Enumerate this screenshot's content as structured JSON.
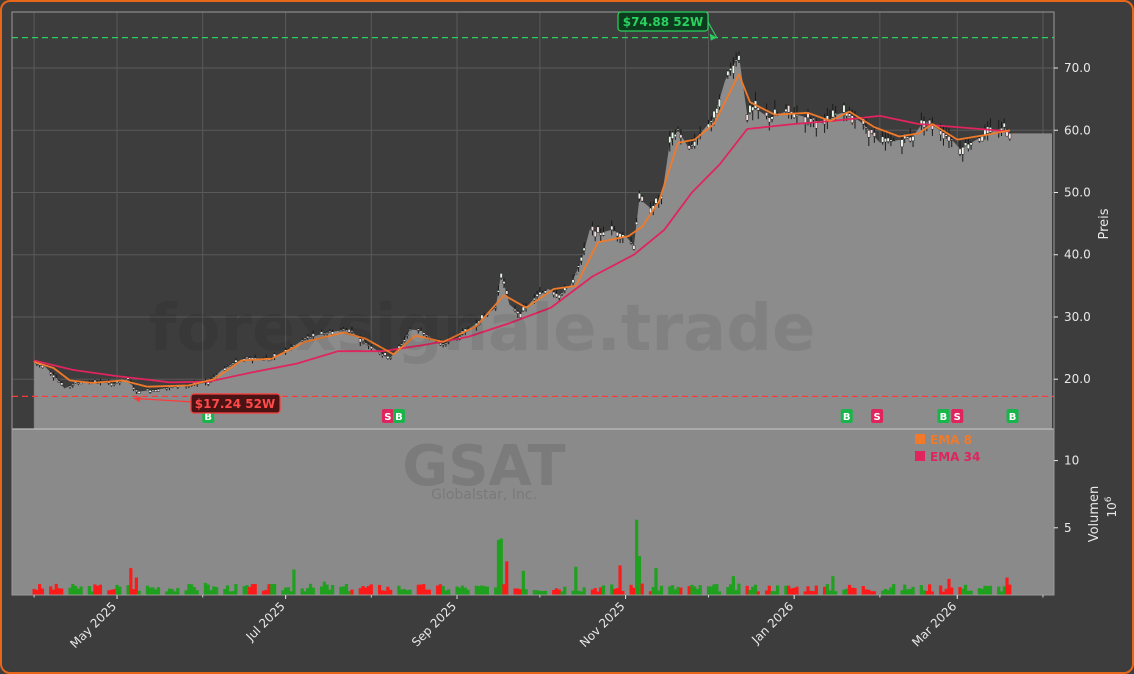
{
  "chart_data": {
    "type": "candlestick",
    "ticker": "GSAT",
    "company": "Globalstar, Inc.",
    "watermark": "forexsignale.trade",
    "price_ylabel": "Preis",
    "volume_ylabel": "Volumen",
    "volume_unit": "10",
    "volume_unit_exp": "6",
    "price_ticks": [
      "20.0",
      "30.0",
      "40.0",
      "50.0",
      "60.0",
      "70.0"
    ],
    "volume_ticks": [
      "5",
      "10"
    ],
    "x_ticks": [
      "May 2025",
      "Jul 2025",
      "Sep 2025",
      "Nov 2025",
      "Jan 2026",
      "Mar 2026"
    ],
    "price_range": [
      12,
      79
    ],
    "high_52w": {
      "value": 74.88,
      "label": "$74.88 52W",
      "date": "2025-12-04"
    },
    "low_52w": {
      "value": 17.24,
      "label": "$17.24 52W",
      "date": "2025-05-07"
    },
    "legend": [
      {
        "name": "EMA 8",
        "color": "#f07a2a"
      },
      {
        "name": "EMA 34",
        "color": "#e0245e"
      }
    ],
    "price_path": [
      [
        "2025-04-01",
        22.8
      ],
      [
        "2025-04-05",
        22.0
      ],
      [
        "2025-04-09",
        20.2
      ],
      [
        "2025-04-12",
        18.5
      ],
      [
        "2025-04-16",
        19.4
      ],
      [
        "2025-04-22",
        19.6
      ],
      [
        "2025-04-30",
        19.3
      ],
      [
        "2025-05-05",
        20.0
      ],
      [
        "2025-05-08",
        18.0
      ],
      [
        "2025-05-15",
        18.3
      ],
      [
        "2025-05-22",
        18.8
      ],
      [
        "2025-05-30",
        19.2
      ],
      [
        "2025-06-03",
        19.5
      ],
      [
        "2025-06-08",
        21.5
      ],
      [
        "2025-06-12",
        22.5
      ],
      [
        "2025-06-17",
        23.5
      ],
      [
        "2025-06-25",
        23.2
      ],
      [
        "2025-07-01",
        24.5
      ],
      [
        "2025-07-08",
        26.5
      ],
      [
        "2025-07-16",
        27.5
      ],
      [
        "2025-07-24",
        28.0
      ],
      [
        "2025-07-28",
        26.5
      ],
      [
        "2025-08-05",
        24.0
      ],
      [
        "2025-08-08",
        23.5
      ],
      [
        "2025-08-12",
        25.5
      ],
      [
        "2025-08-15",
        28.0
      ],
      [
        "2025-08-19",
        27.8
      ],
      [
        "2025-08-26",
        25.5
      ],
      [
        "2025-09-01",
        26.5
      ],
      [
        "2025-09-08",
        29.0
      ],
      [
        "2025-09-15",
        31.5
      ],
      [
        "2025-09-17",
        37.0
      ],
      [
        "2025-09-20",
        32.0
      ],
      [
        "2025-09-24",
        30.5
      ],
      [
        "2025-09-29",
        33.0
      ],
      [
        "2025-10-04",
        34.5
      ],
      [
        "2025-10-08",
        33.5
      ],
      [
        "2025-10-12",
        35.0
      ],
      [
        "2025-10-16",
        39.0
      ],
      [
        "2025-10-19",
        44.0
      ],
      [
        "2025-10-23",
        43.5
      ],
      [
        "2025-10-27",
        44.0
      ],
      [
        "2025-11-01",
        43.0
      ],
      [
        "2025-11-04",
        41.5
      ],
      [
        "2025-11-06",
        49.0
      ],
      [
        "2025-11-10",
        47.5
      ],
      [
        "2025-11-14",
        49.0
      ],
      [
        "2025-11-17",
        58.0
      ],
      [
        "2025-11-20",
        60.0
      ],
      [
        "2025-11-24",
        57.0
      ],
      [
        "2025-11-29",
        60.0
      ],
      [
        "2025-12-03",
        62.0
      ],
      [
        "2025-12-07",
        68.0
      ],
      [
        "2025-12-12",
        72.0
      ],
      [
        "2025-12-15",
        62.5
      ],
      [
        "2025-12-18",
        63.5
      ],
      [
        "2025-12-23",
        62.0
      ],
      [
        "2025-12-29",
        63.0
      ],
      [
        "2026-01-06",
        62.0
      ],
      [
        "2026-01-12",
        61.0
      ],
      [
        "2026-01-16",
        62.5
      ],
      [
        "2026-01-20",
        63.0
      ],
      [
        "2026-01-26",
        61.0
      ],
      [
        "2026-02-01",
        58.0
      ],
      [
        "2026-02-09",
        58.5
      ],
      [
        "2026-02-13",
        59.0
      ],
      [
        "2026-02-17",
        61.5
      ],
      [
        "2026-02-21",
        60.5
      ],
      [
        "2026-02-26",
        59.0
      ],
      [
        "2026-03-02",
        57.0
      ],
      [
        "2026-03-06",
        58.0
      ],
      [
        "2026-03-12",
        59.5
      ],
      [
        "2026-03-18",
        60.5
      ],
      [
        "2026-03-20",
        59.5
      ]
    ],
    "ema8": [
      [
        "2025-04-01",
        22.8
      ],
      [
        "2025-04-08",
        21.8
      ],
      [
        "2025-04-14",
        19.8
      ],
      [
        "2025-04-22",
        19.4
      ],
      [
        "2025-05-03",
        19.8
      ],
      [
        "2025-05-12",
        18.8
      ],
      [
        "2025-05-27",
        19.0
      ],
      [
        "2025-06-05",
        20.0
      ],
      [
        "2025-06-15",
        23.0
      ],
      [
        "2025-06-26",
        23.3
      ],
      [
        "2025-07-08",
        26.0
      ],
      [
        "2025-07-22",
        27.5
      ],
      [
        "2025-07-30",
        26.5
      ],
      [
        "2025-08-09",
        24.0
      ],
      [
        "2025-08-17",
        27.0
      ],
      [
        "2025-08-27",
        26.0
      ],
      [
        "2025-09-08",
        28.5
      ],
      [
        "2025-09-18",
        33.5
      ],
      [
        "2025-09-26",
        31.5
      ],
      [
        "2025-10-06",
        34.5
      ],
      [
        "2025-10-14",
        35.0
      ],
      [
        "2025-10-22",
        42.0
      ],
      [
        "2025-11-02",
        43.0
      ],
      [
        "2025-11-07",
        44.5
      ],
      [
        "2025-11-13",
        48.5
      ],
      [
        "2025-11-20",
        58.0
      ],
      [
        "2025-11-26",
        58.5
      ],
      [
        "2025-12-03",
        61.0
      ],
      [
        "2025-12-12",
        69.0
      ],
      [
        "2025-12-16",
        64.5
      ],
      [
        "2025-12-25",
        62.5
      ],
      [
        "2026-01-06",
        62.8
      ],
      [
        "2026-01-14",
        61.5
      ],
      [
        "2026-01-21",
        63.0
      ],
      [
        "2026-01-30",
        60.5
      ],
      [
        "2026-02-08",
        59.0
      ],
      [
        "2026-02-15",
        59.5
      ],
      [
        "2026-02-20",
        61.0
      ],
      [
        "2026-03-01",
        58.5
      ],
      [
        "2026-03-12",
        59.3
      ],
      [
        "2026-03-20",
        60.0
      ]
    ],
    "ema34": [
      [
        "2025-04-01",
        23.0
      ],
      [
        "2025-04-15",
        21.5
      ],
      [
        "2025-05-01",
        20.5
      ],
      [
        "2025-05-20",
        19.5
      ],
      [
        "2025-06-03",
        19.6
      ],
      [
        "2025-06-20",
        21.2
      ],
      [
        "2025-07-05",
        22.5
      ],
      [
        "2025-07-20",
        24.5
      ],
      [
        "2025-08-05",
        24.5
      ],
      [
        "2025-08-20",
        25.5
      ],
      [
        "2025-09-05",
        26.8
      ],
      [
        "2025-09-20",
        29.0
      ],
      [
        "2025-10-05",
        31.5
      ],
      [
        "2025-10-20",
        36.5
      ],
      [
        "2025-11-04",
        40.0
      ],
      [
        "2025-11-15",
        44.0
      ],
      [
        "2025-11-25",
        50.0
      ],
      [
        "2025-12-05",
        54.5
      ],
      [
        "2025-12-15",
        60.2
      ],
      [
        "2026-01-01",
        61.0
      ],
      [
        "2026-01-15",
        61.5
      ],
      [
        "2026-02-01",
        62.3
      ],
      [
        "2026-02-15",
        61.0
      ],
      [
        "2026-03-01",
        60.5
      ],
      [
        "2026-03-20",
        59.8
      ]
    ],
    "signals": [
      {
        "date": "2025-06-03",
        "type": "B"
      },
      {
        "date": "2025-08-07",
        "type": "S"
      },
      {
        "date": "2025-08-11",
        "type": "B"
      },
      {
        "date": "2026-01-20",
        "type": "B"
      },
      {
        "date": "2026-01-31",
        "type": "S"
      },
      {
        "date": "2026-02-24",
        "type": "B"
      },
      {
        "date": "2026-03-01",
        "type": "S"
      },
      {
        "date": "2026-03-21",
        "type": "B"
      }
    ],
    "volume_spikes": [
      [
        "2025-04-13",
        1.1
      ],
      [
        "2025-05-06",
        2.0
      ],
      [
        "2025-05-08",
        1.3
      ],
      [
        "2025-06-02",
        0.9
      ],
      [
        "2025-07-04",
        1.9
      ],
      [
        "2025-07-15",
        1.0
      ],
      [
        "2025-08-16",
        1.8
      ],
      [
        "2025-09-16",
        4.1
      ],
      [
        "2025-09-17",
        4.2
      ],
      [
        "2025-09-19",
        2.5
      ],
      [
        "2025-09-25",
        1.8
      ],
      [
        "2025-10-14",
        2.1
      ],
      [
        "2025-10-30",
        2.2
      ],
      [
        "2025-11-05",
        5.6
      ],
      [
        "2025-11-06",
        2.9
      ],
      [
        "2025-11-12",
        2.0
      ],
      [
        "2025-11-15",
        2.1
      ],
      [
        "2025-12-10",
        1.4
      ],
      [
        "2026-01-15",
        1.4
      ],
      [
        "2026-02-26",
        1.2
      ],
      [
        "2026-03-19",
        1.3
      ]
    ]
  }
}
